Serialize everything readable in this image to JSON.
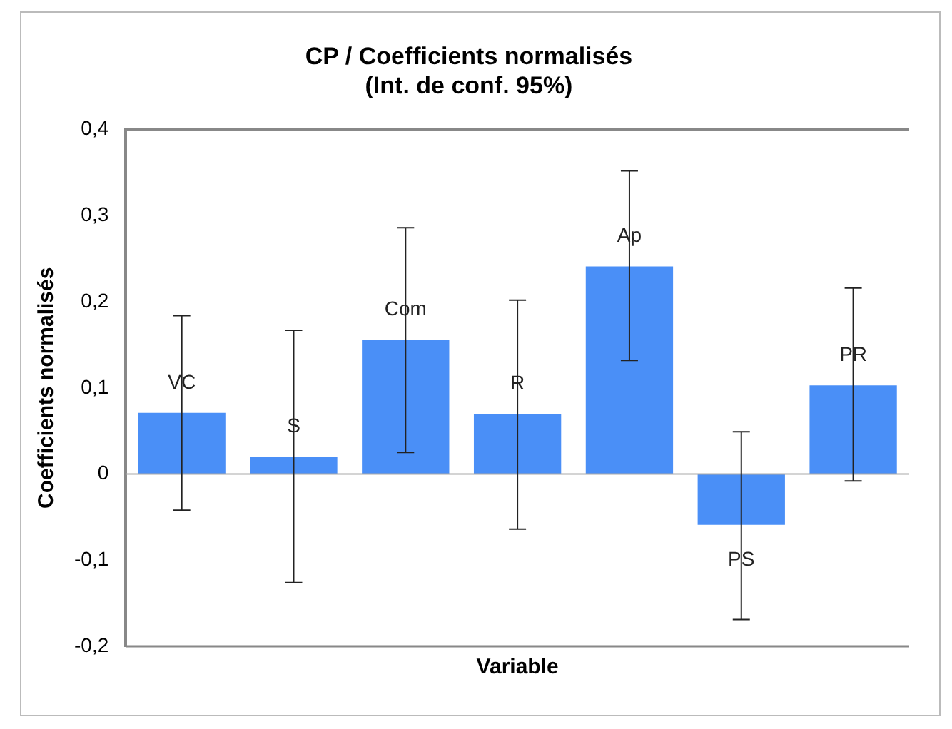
{
  "chart_data": {
    "type": "bar",
    "title": "CP / Coefficients normalisés\n(Int. de conf. 95%)",
    "xlabel": "Variable",
    "ylabel": "Coefficients normalisés",
    "categories": [
      "VC",
      "S",
      "Com",
      "R",
      "Ap",
      "PS",
      "PR"
    ],
    "values": [
      0.071,
      0.02,
      0.156,
      0.07,
      0.241,
      -0.059,
      0.103
    ],
    "errors": [
      [
        -0.042,
        0.184
      ],
      [
        -0.126,
        0.167
      ],
      [
        0.025,
        0.286
      ],
      [
        -0.064,
        0.202
      ],
      [
        0.132,
        0.352
      ],
      [
        -0.169,
        0.049
      ],
      [
        -0.008,
        0.216
      ]
    ],
    "color": "#4a8ff7",
    "ylim": [
      -0.2,
      0.4
    ],
    "yticks": [
      {
        "value": -0.2,
        "label": "-0,2"
      },
      {
        "value": -0.1,
        "label": "-0,1"
      },
      {
        "value": 0,
        "label": "0"
      },
      {
        "value": 0.1,
        "label": "0,1"
      },
      {
        "value": 0.2,
        "label": "0,2"
      },
      {
        "value": 0.3,
        "label": "0,3"
      },
      {
        "value": 0.4,
        "label": "0,4"
      }
    ],
    "ref_lines": [
      {
        "axis": "y",
        "value": 0,
        "color": "#aaaaaa"
      }
    ],
    "tick_labels": "y",
    "grid": false,
    "legend": false
  }
}
